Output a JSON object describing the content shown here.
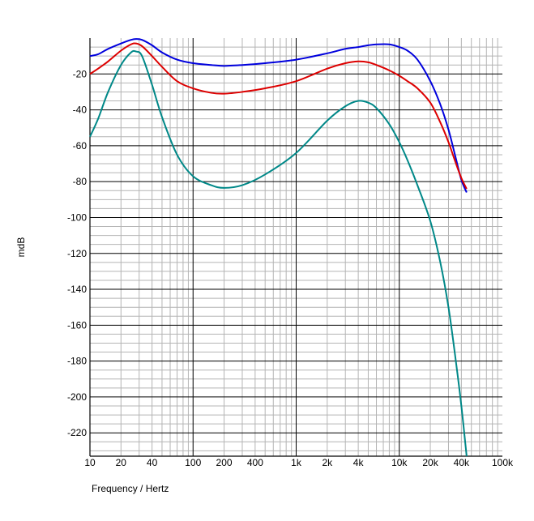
{
  "chart_data": {
    "type": "line",
    "title": "",
    "xlabel": "Frequency / Hertz",
    "ylabel": "mdB",
    "x_scale": "log",
    "xlim": [
      10,
      100000
    ],
    "ylim": [
      -233,
      0
    ],
    "grid": true,
    "legend": "none",
    "x_ticks": [
      {
        "value": 10,
        "label": "10"
      },
      {
        "value": 20,
        "label": "20"
      },
      {
        "value": 40,
        "label": "40"
      },
      {
        "value": 100,
        "label": "100"
      },
      {
        "value": 200,
        "label": "200"
      },
      {
        "value": 400,
        "label": "400"
      },
      {
        "value": 1000,
        "label": "1k"
      },
      {
        "value": 2000,
        "label": "2k"
      },
      {
        "value": 4000,
        "label": "4k"
      },
      {
        "value": 10000,
        "label": "10k"
      },
      {
        "value": 20000,
        "label": "20k"
      },
      {
        "value": 40000,
        "label": "40k"
      },
      {
        "value": 100000,
        "label": "100k"
      }
    ],
    "y_ticks": [
      {
        "value": -20,
        "label": "-20"
      },
      {
        "value": -40,
        "label": "-40"
      },
      {
        "value": -60,
        "label": "-60"
      },
      {
        "value": -80,
        "label": "-80"
      },
      {
        "value": -100,
        "label": "-100"
      },
      {
        "value": -120,
        "label": "-120"
      },
      {
        "value": -140,
        "label": "-140"
      },
      {
        "value": -160,
        "label": "-160"
      },
      {
        "value": -180,
        "label": "-180"
      },
      {
        "value": -200,
        "label": "-200"
      },
      {
        "value": -220,
        "label": "-220"
      }
    ],
    "series": [
      {
        "color": "#0000dd",
        "x": [
          10,
          12,
          15,
          20,
          25,
          28,
          32,
          40,
          50,
          70,
          100,
          150,
          200,
          300,
          500,
          1000,
          2000,
          3000,
          4000,
          5000,
          6000,
          8000,
          10000,
          12000,
          15000,
          20000,
          25000,
          30000,
          35000,
          40000,
          45000
        ],
        "y": [
          -10,
          -9,
          -6,
          -3,
          -1,
          -0.5,
          -1,
          -4,
          -8,
          -12,
          -14,
          -15,
          -15.5,
          -15,
          -14,
          -12,
          -8.5,
          -6,
          -5,
          -4,
          -3.5,
          -3.5,
          -5,
          -7,
          -12,
          -24,
          -37,
          -51,
          -66,
          -79,
          -86
        ]
      },
      {
        "color": "#dd0000",
        "x": [
          10,
          12,
          15,
          20,
          25,
          28,
          32,
          40,
          50,
          70,
          100,
          150,
          200,
          300,
          500,
          1000,
          2000,
          3000,
          4000,
          5000,
          6000,
          8000,
          10000,
          12000,
          15000,
          20000,
          25000,
          30000,
          35000,
          40000,
          45000
        ],
        "y": [
          -20,
          -17,
          -13,
          -7,
          -3.5,
          -3,
          -4.5,
          -10,
          -16,
          -24,
          -28,
          -30.5,
          -31,
          -30,
          -28,
          -24,
          -17,
          -14,
          -13,
          -13.5,
          -15,
          -18,
          -21,
          -24,
          -28,
          -36,
          -47,
          -58,
          -69,
          -78,
          -84
        ]
      },
      {
        "color": "#008888",
        "x": [
          10,
          12,
          15,
          20,
          25,
          28,
          32,
          40,
          50,
          70,
          100,
          150,
          200,
          300,
          500,
          1000,
          2000,
          3000,
          4000,
          5000,
          6000,
          8000,
          10000,
          12000,
          15000,
          20000,
          25000,
          30000,
          35000,
          40000,
          45000
        ],
        "y": [
          -55,
          -45,
          -30,
          -15,
          -8,
          -7.5,
          -10,
          -26,
          -44,
          -65,
          -77,
          -82,
          -83.5,
          -82,
          -76,
          -64,
          -46,
          -38,
          -35,
          -36,
          -39,
          -48,
          -58,
          -68,
          -82,
          -102,
          -125,
          -150,
          -178,
          -205,
          -233
        ]
      }
    ]
  }
}
